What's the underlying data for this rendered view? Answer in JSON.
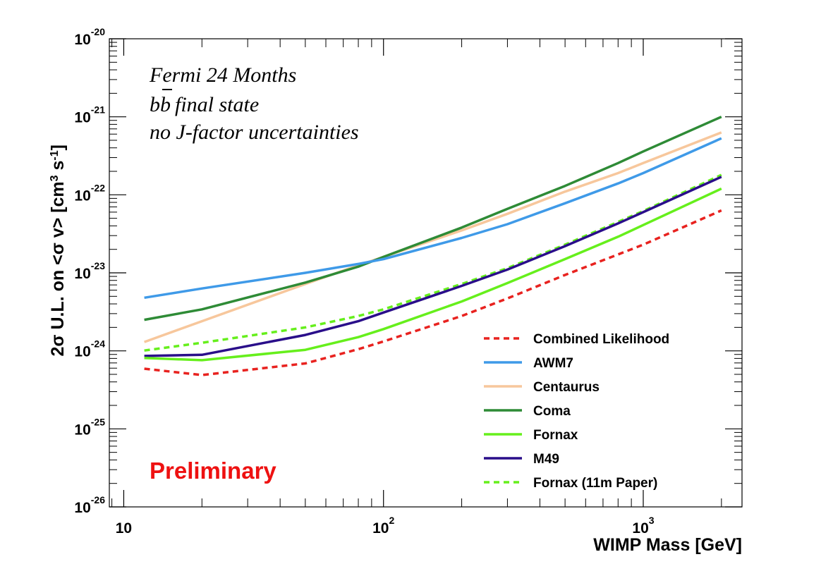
{
  "chart_data": {
    "type": "line",
    "title": "",
    "xlabel": "WIMP Mass [GeV]",
    "ylabel": "2σ U.L. on <σ v> [cm³ s⁻¹]",
    "ylabel_parts": {
      "pre": "2σ U.L. on <σ v> [cm",
      "exp1": "3",
      "mid": " s",
      "exp2": "-1",
      "post": "]"
    },
    "x_scale": "log",
    "y_scale": "log",
    "xlim": [
      8.8,
      2400
    ],
    "ylim": [
      1e-26,
      1e-20
    ],
    "x_ticks": [
      {
        "value": 10,
        "base": "10",
        "exp": ""
      },
      {
        "value": 100,
        "base": "10",
        "exp": "2"
      },
      {
        "value": 1000,
        "base": "10",
        "exp": "3"
      }
    ],
    "y_ticks": [
      {
        "value": 1e-26,
        "base": "10",
        "exp": "-26"
      },
      {
        "value": 1e-25,
        "base": "10",
        "exp": "-25"
      },
      {
        "value": 1e-24,
        "base": "10",
        "exp": "-24"
      },
      {
        "value": 1e-23,
        "base": "10",
        "exp": "-23"
      },
      {
        "value": 1e-22,
        "base": "10",
        "exp": "-22"
      },
      {
        "value": 1e-21,
        "base": "10",
        "exp": "-21"
      },
      {
        "value": 1e-20,
        "base": "10",
        "exp": "-20"
      }
    ],
    "x": [
      12,
      20,
      50,
      80,
      100,
      200,
      300,
      500,
      800,
      1000,
      2000
    ],
    "series": [
      {
        "name": "Combined Likelihood",
        "color": "#e8221f",
        "dashed": true,
        "values": [
          5.9e-25,
          4.9e-25,
          6.9e-25,
          1.05e-24,
          1.32e-24,
          2.8e-24,
          4.7e-24,
          9.4e-24,
          1.72e-23,
          2.3e-23,
          6.3e-23
        ]
      },
      {
        "name": "AWM7",
        "color": "#3f9ae8",
        "dashed": false,
        "values": [
          4.8e-24,
          6.3e-24,
          1e-23,
          1.3e-23,
          1.5e-23,
          2.8e-23,
          4.2e-23,
          7.8e-23,
          1.4e-22,
          1.9e-22,
          5.3e-22
        ]
      },
      {
        "name": "Centaurus",
        "color": "#f7c79c",
        "dashed": false,
        "values": [
          1.3e-24,
          2.4e-24,
          7.2e-24,
          1.25e-23,
          1.6e-23,
          3.5e-23,
          5.7e-23,
          1.1e-22,
          1.9e-22,
          2.55e-22,
          6.3e-22
        ]
      },
      {
        "name": "Coma",
        "color": "#2e8b36",
        "dashed": false,
        "values": [
          2.5e-24,
          3.4e-24,
          7.5e-24,
          1.2e-23,
          1.6e-23,
          3.8e-23,
          6.6e-23,
          1.3e-22,
          2.55e-22,
          3.6e-22,
          1e-21
        ]
      },
      {
        "name": "Fornax",
        "color": "#66ef1c",
        "dashed": false,
        "values": [
          8.1e-25,
          7.6e-25,
          1.03e-24,
          1.5e-24,
          1.9e-24,
          4.3e-24,
          7.4e-24,
          1.5e-23,
          2.9e-23,
          4.1e-23,
          1.2e-22
        ]
      },
      {
        "name": "M49",
        "color": "#2a0e8a",
        "dashed": false,
        "values": [
          8.6e-25,
          8.9e-25,
          1.6e-24,
          2.4e-24,
          3.1e-24,
          6.8e-24,
          1.1e-23,
          2.2e-23,
          4.3e-23,
          6e-23,
          1.7e-22
        ]
      },
      {
        "name": "Fornax (11m Paper)",
        "color": "#66ef1c",
        "dashed": true,
        "values": [
          1.01e-24,
          1.27e-24,
          2e-24,
          2.8e-24,
          3.4e-24,
          7.2e-24,
          1.15e-23,
          2.3e-23,
          4.5e-23,
          6.2e-23,
          1.8e-22
        ]
      }
    ],
    "annotations": [
      "Fermi 24 Months",
      "b",
      "b",
      "final state",
      "no J-factor uncertainties"
    ],
    "preliminary": {
      "text": "Preliminary",
      "color": "#ee1111"
    },
    "legend_position": "bottom-right",
    "grid": false
  }
}
